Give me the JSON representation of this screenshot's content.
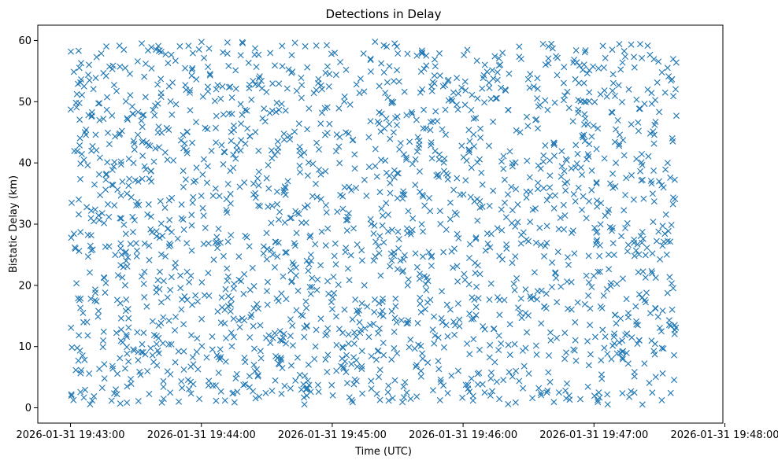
{
  "chart_data": {
    "type": "scatter",
    "title": "Detections in Delay",
    "xlabel": "Time (UTC)",
    "ylabel": "Bistatic Delay (km)",
    "marker": "x",
    "color": "#1f77b4",
    "grid": false,
    "legend": "none",
    "xlim_minutes": [
      -0.25,
      4.985
    ],
    "ylim": [
      -2.5,
      62.5
    ],
    "x_data_range_minutes": [
      0.0,
      4.63
    ],
    "y_data_range": [
      0.5,
      59.8
    ],
    "approx_point_count": 2000,
    "xticks": [
      {
        "minute": 0,
        "label": "2026-01-31 19:43:00"
      },
      {
        "minute": 1,
        "label": "2026-01-31 19:44:00"
      },
      {
        "minute": 2,
        "label": "2026-01-31 19:45:00"
      },
      {
        "minute": 3,
        "label": "2026-01-31 19:46:00"
      },
      {
        "minute": 4,
        "label": "2026-01-31 19:47:00"
      },
      {
        "minute": 5,
        "label": "2026-01-31 19:48:00"
      }
    ],
    "yticks": [
      {
        "value": 0,
        "label": "0"
      },
      {
        "value": 10,
        "label": "10"
      },
      {
        "value": 20,
        "label": "20"
      },
      {
        "value": 30,
        "label": "30"
      },
      {
        "value": 40,
        "label": "40"
      },
      {
        "value": 50,
        "label": "50"
      },
      {
        "value": 60,
        "label": "60"
      }
    ]
  }
}
